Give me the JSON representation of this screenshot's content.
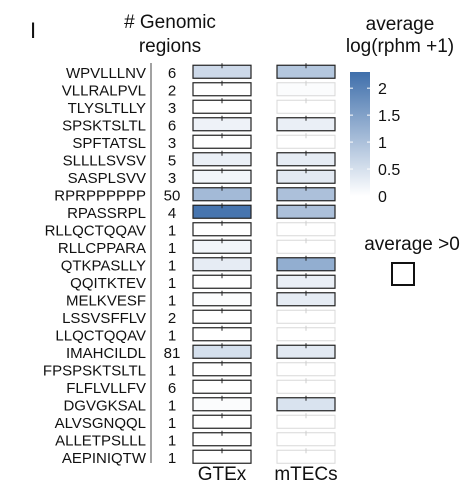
{
  "chart_data": {
    "type": "heatmap",
    "panel_label": "I",
    "count_header": [
      "# Genomic",
      "regions"
    ],
    "columns": [
      "GTEx",
      "mTECs"
    ],
    "rows": [
      {
        "peptide": "WPVLLLNV",
        "count": "6",
        "gtex": 0.6,
        "mtecs": 0.9,
        "gtex_border": true,
        "mtecs_border": true
      },
      {
        "peptide": "VLLRALPVL",
        "count": "2",
        "gtex": 0.0,
        "mtecs": 0.05,
        "gtex_border": true,
        "mtecs_border": false
      },
      {
        "peptide": "TLYSLTLLY",
        "count": "3",
        "gtex": 0.0,
        "mtecs": 0.0,
        "gtex_border": true,
        "mtecs_border": false
      },
      {
        "peptide": "SPSKTSLTL",
        "count": "6",
        "gtex": 0.2,
        "mtecs": 0.25,
        "gtex_border": true,
        "mtecs_border": true
      },
      {
        "peptide": "SPFTATSL",
        "count": "3",
        "gtex": 0.0,
        "mtecs": 0.0,
        "gtex_border": true,
        "mtecs_border": false
      },
      {
        "peptide": "SLLLLSVSV",
        "count": "5",
        "gtex": 0.25,
        "mtecs": 0.3,
        "gtex_border": true,
        "mtecs_border": true
      },
      {
        "peptide": "SASPLSVV",
        "count": "3",
        "gtex": 0.15,
        "mtecs": 0.35,
        "gtex_border": true,
        "mtecs_border": true
      },
      {
        "peptide": "RPRPPPPPP",
        "count": "50",
        "gtex": 1.1,
        "mtecs": 1.0,
        "gtex_border": true,
        "mtecs_border": true
      },
      {
        "peptide": "RPASSRPL",
        "count": "4",
        "gtex": 2.2,
        "mtecs": 1.0,
        "gtex_border": true,
        "mtecs_border": true
      },
      {
        "peptide": "RLLQCTQQAV",
        "count": "1",
        "gtex": 0.0,
        "mtecs": 0.0,
        "gtex_border": true,
        "mtecs_border": false
      },
      {
        "peptide": "RLLCPPARA",
        "count": "1",
        "gtex": 0.15,
        "mtecs": 0.0,
        "gtex_border": true,
        "mtecs_border": false
      },
      {
        "peptide": "QTKPASLLY",
        "count": "1",
        "gtex": 0.3,
        "mtecs": 1.3,
        "gtex_border": true,
        "mtecs_border": true
      },
      {
        "peptide": "QQITKTEV",
        "count": "1",
        "gtex": 0.0,
        "mtecs": 0.25,
        "gtex_border": true,
        "mtecs_border": true
      },
      {
        "peptide": "MELKVESF",
        "count": "1",
        "gtex": 0.05,
        "mtecs": 0.3,
        "gtex_border": true,
        "mtecs_border": true
      },
      {
        "peptide": "LSSVSFFLV",
        "count": "2",
        "gtex": 0.0,
        "mtecs": 0.0,
        "gtex_border": true,
        "mtecs_border": false
      },
      {
        "peptide": "LLQCTQQAV",
        "count": "1",
        "gtex": 0.0,
        "mtecs": 0.0,
        "gtex_border": true,
        "mtecs_border": false
      },
      {
        "peptide": "IMAHCILDL",
        "count": "81",
        "gtex": 0.5,
        "mtecs": 0.35,
        "gtex_border": true,
        "mtecs_border": true
      },
      {
        "peptide": "FPSPSKTSLTL",
        "count": "1",
        "gtex": 0.0,
        "mtecs": 0.0,
        "gtex_border": true,
        "mtecs_border": false
      },
      {
        "peptide": "FLFLVLLFV",
        "count": "6",
        "gtex": 0.0,
        "mtecs": 0.0,
        "gtex_border": true,
        "mtecs_border": false
      },
      {
        "peptide": "DGVGKSAL",
        "count": "1",
        "gtex": 0.05,
        "mtecs": 0.45,
        "gtex_border": true,
        "mtecs_border": true
      },
      {
        "peptide": "ALVSGNQQL",
        "count": "1",
        "gtex": 0.0,
        "mtecs": 0.0,
        "gtex_border": true,
        "mtecs_border": false
      },
      {
        "peptide": "ALLETPSLLL",
        "count": "1",
        "gtex": 0.0,
        "mtecs": 0.0,
        "gtex_border": true,
        "mtecs_border": false
      },
      {
        "peptide": "AEPINIQTW",
        "count": "1",
        "gtex": 0.0,
        "mtecs": 0.0,
        "gtex_border": true,
        "mtecs_border": false
      }
    ],
    "colorbar": {
      "title": [
        "average",
        "log(rphm +1)"
      ],
      "range": [
        0,
        2.3
      ],
      "ticks": [
        0,
        0.5,
        1,
        1.5,
        2
      ],
      "tick_labels": [
        "0",
        "0.5",
        "1",
        "1.5",
        "2"
      ],
      "low_color": "#ffffff",
      "high_color": "#3f6fab"
    },
    "legend": {
      "label": "average >0"
    }
  }
}
